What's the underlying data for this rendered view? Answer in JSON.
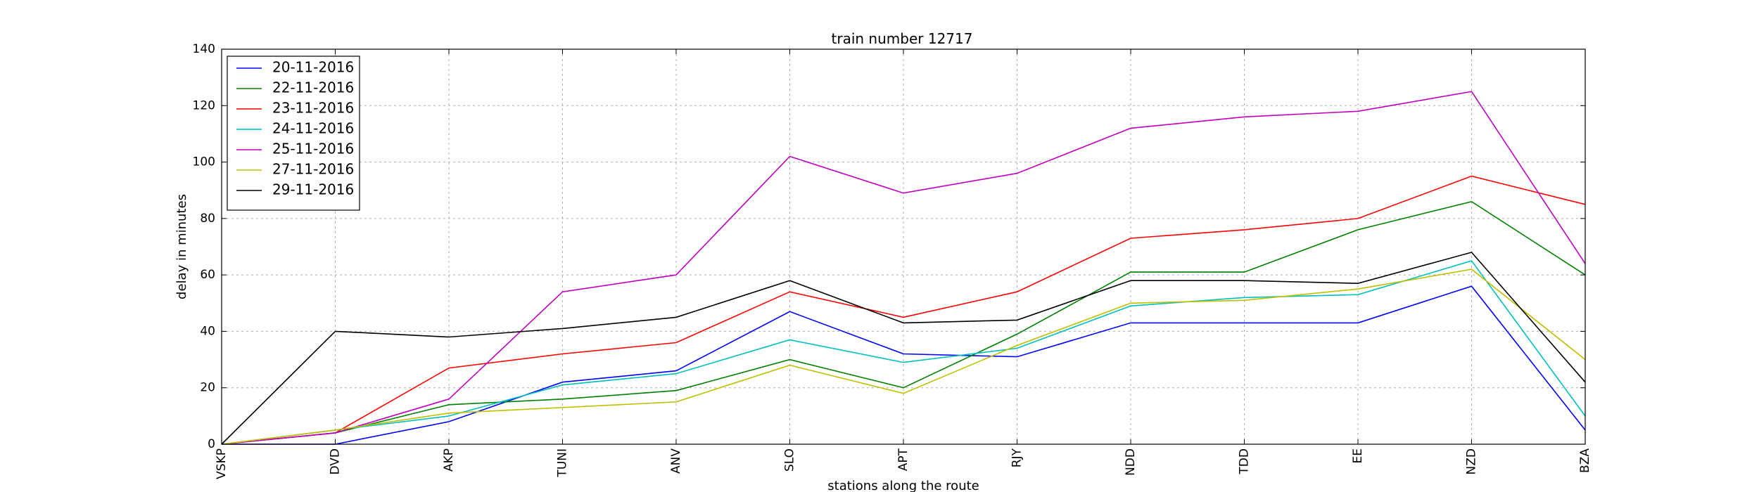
{
  "chart_data": {
    "type": "line",
    "title": "train number 12717",
    "xlabel": "stations along the route",
    "ylabel": "delay in minutes",
    "categories": [
      "VSKP",
      "DVD",
      "AKP",
      "TUNI",
      "ANV",
      "SLO",
      "APT",
      "RJY",
      "NDD",
      "TDD",
      "EE",
      "NZD",
      "BZA"
    ],
    "ylim": [
      0,
      140
    ],
    "yticks": [
      0,
      20,
      40,
      60,
      80,
      100,
      120,
      140
    ],
    "grid": true,
    "legend_position": "top-left",
    "series": [
      {
        "name": "20-11-2016",
        "color": "#0000ff",
        "values": [
          0,
          0,
          8,
          22,
          26,
          47,
          32,
          31,
          43,
          43,
          43,
          56,
          5
        ]
      },
      {
        "name": "22-11-2016",
        "color": "#008000",
        "values": [
          0,
          4,
          14,
          16,
          19,
          30,
          20,
          39,
          61,
          61,
          76,
          86,
          60
        ]
      },
      {
        "name": "23-11-2016",
        "color": "#ff0000",
        "values": [
          0,
          4,
          27,
          32,
          36,
          54,
          45,
          54,
          73,
          76,
          80,
          95,
          85
        ]
      },
      {
        "name": "24-11-2016",
        "color": "#00bfbf",
        "values": [
          0,
          5,
          10,
          21,
          25,
          37,
          29,
          34,
          49,
          52,
          53,
          65,
          10
        ]
      },
      {
        "name": "25-11-2016",
        "color": "#bf00bf",
        "values": [
          0,
          4,
          16,
          54,
          60,
          102,
          89,
          96,
          112,
          116,
          118,
          125,
          64
        ]
      },
      {
        "name": "27-11-2016",
        "color": "#bfbf00",
        "values": [
          0,
          5,
          11,
          13,
          15,
          28,
          18,
          35,
          50,
          51,
          55,
          62,
          30
        ]
      },
      {
        "name": "29-11-2016",
        "color": "#000000",
        "values": [
          0,
          40,
          38,
          41,
          45,
          58,
          43,
          44,
          58,
          58,
          57,
          68,
          22
        ]
      }
    ]
  }
}
